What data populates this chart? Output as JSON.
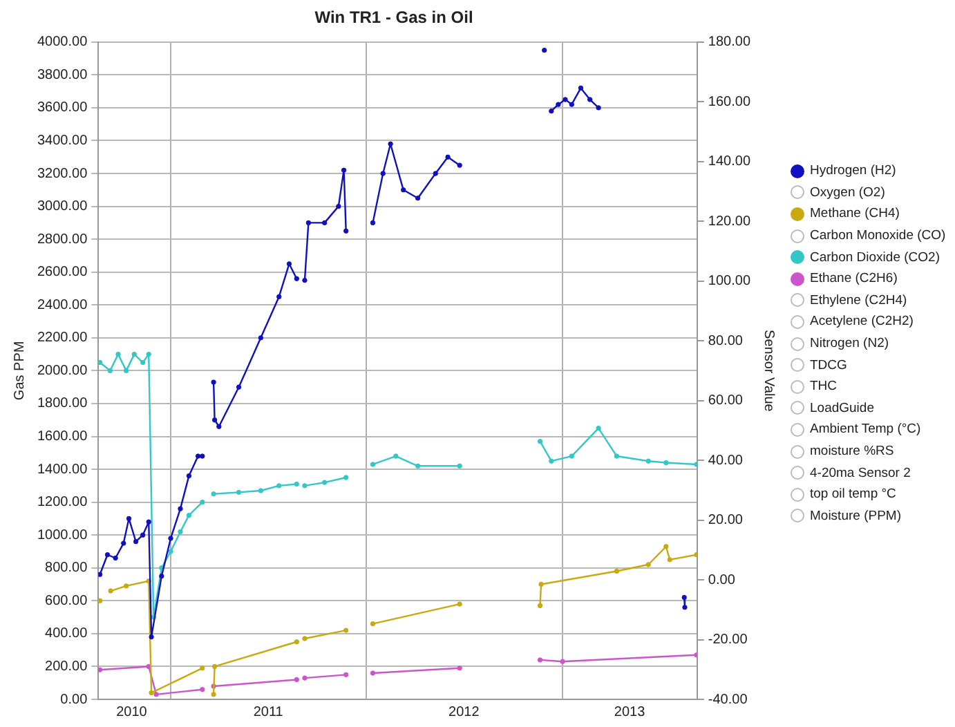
{
  "chart_data": {
    "type": "line",
    "title": "Win TR1 - Gas in Oil",
    "ylabel": "Gas PPM",
    "y2label": "Sensor Value",
    "grid": true,
    "legend": "right",
    "marker": "circle",
    "line_style": "solid",
    "xlim": [
      "2010-08-19",
      "2013-09-09"
    ],
    "xticks": [
      {
        "value": "2010-10-20",
        "label": "2010"
      },
      {
        "value": "2011-01-01",
        "label": null
      },
      {
        "value": "2011-07-02",
        "label": "2011"
      },
      {
        "value": "2012-01-01",
        "label": null
      },
      {
        "value": "2012-07-01",
        "label": "2012"
      },
      {
        "value": "2013-01-01",
        "label": null
      },
      {
        "value": "2013-05-06",
        "label": "2013"
      }
    ],
    "ylim": [
      0,
      4000
    ],
    "yticks": [
      {
        "value": 0,
        "label": "0.00"
      },
      {
        "value": 200,
        "label": "200.00"
      },
      {
        "value": 400,
        "label": "400.00"
      },
      {
        "value": 600,
        "label": "600.00"
      },
      {
        "value": 800,
        "label": "800.00"
      },
      {
        "value": 1000,
        "label": "1000.00"
      },
      {
        "value": 1200,
        "label": "1200.00"
      },
      {
        "value": 1400,
        "label": "1400.00"
      },
      {
        "value": 1600,
        "label": "1600.00"
      },
      {
        "value": 1800,
        "label": "1800.00"
      },
      {
        "value": 2000,
        "label": "2000.00"
      },
      {
        "value": 2200,
        "label": "2200.00"
      },
      {
        "value": 2400,
        "label": "2400.00"
      },
      {
        "value": 2600,
        "label": "2600.00"
      },
      {
        "value": 2800,
        "label": "2800.00"
      },
      {
        "value": 3000,
        "label": "3000.00"
      },
      {
        "value": 3200,
        "label": "3200.00"
      },
      {
        "value": 3400,
        "label": "3400.00"
      },
      {
        "value": 3600,
        "label": "3600.00"
      },
      {
        "value": 3800,
        "label": "3800.00"
      },
      {
        "value": 4000,
        "label": "4000.00"
      }
    ],
    "y2lim": [
      -40,
      180
    ],
    "y2ticks": [
      {
        "value": -40,
        "label": "-40.00"
      },
      {
        "value": -20,
        "label": "-20.00"
      },
      {
        "value": 0,
        "label": "0.00"
      },
      {
        "value": 20,
        "label": "20.00"
      },
      {
        "value": 40,
        "label": "40.00"
      },
      {
        "value": 60,
        "label": "60.00"
      },
      {
        "value": 80,
        "label": "80.00"
      },
      {
        "value": 100,
        "label": "100.00"
      },
      {
        "value": 120,
        "label": "120.00"
      },
      {
        "value": 140,
        "label": "140.00"
      },
      {
        "value": 160,
        "label": "160.00"
      },
      {
        "value": 180,
        "label": "180.00"
      }
    ],
    "series": [
      {
        "name": "Hydrogen (H2)",
        "color": "#1010c0",
        "x": [
          "2010-08-22",
          "2010-09-05",
          "2010-09-20",
          "2010-10-05",
          "2010-10-15",
          "2010-10-28",
          "2010-11-10",
          "2010-11-21",
          "2010-11-26",
          "2010-12-15",
          "2011-01-01",
          "2011-01-19",
          "2011-02-04",
          "2011-02-21",
          "2011-03-01",
          "2011-03-12",
          "2011-03-22",
          "2011-03-24",
          "2011-04-01",
          "2011-05-08",
          "2011-06-18",
          "2011-07-22",
          "2011-08-10",
          "2011-08-24",
          "2011-09-02",
          "2011-09-08",
          "2011-09-15",
          "2011-10-15",
          "2011-11-10",
          "2011-11-20",
          "2011-11-24",
          "2011-12-20",
          "2012-01-13",
          "2012-02-01",
          "2012-02-15",
          "2012-03-10",
          "2012-04-06",
          "2012-05-09",
          "2012-06-01",
          "2012-06-23",
          "2012-09-01",
          "2012-11-28",
          "2012-12-01",
          "2012-12-11",
          "2012-12-24",
          "2013-01-06",
          "2013-01-18",
          "2013-02-04",
          "2013-02-21",
          "2013-03-09",
          "2013-04-01",
          "2013-08-16",
          "2013-08-17"
        ],
        "values": [
          760,
          880,
          860,
          950,
          1100,
          960,
          1000,
          1080,
          380,
          750,
          980,
          1160,
          1360,
          1480,
          1480,
          null,
          1930,
          1700,
          1660,
          1900,
          2200,
          2450,
          2650,
          2560,
          null,
          2550,
          2900,
          2900,
          3000,
          3220,
          2850,
          null,
          2900,
          3200,
          3380,
          3100,
          3050,
          3200,
          3300,
          3250,
          null,
          3950,
          null,
          3580,
          3620,
          3650,
          3620,
          3720,
          3650,
          3600,
          null,
          620,
          560
        ]
      },
      {
        "name": "Oxygen (O2)"
      },
      {
        "name": "Methane (CH4)",
        "color": "#c8aa10",
        "x": [
          "2010-08-22",
          "2010-09-01",
          "2010-09-11",
          "2010-10-10",
          "2010-11-21",
          "2010-11-26",
          "2011-03-01",
          "2011-03-12",
          "2011-03-22",
          "2011-03-24",
          "2011-08-24",
          "2011-09-02",
          "2011-09-08",
          "2011-11-24",
          "2011-12-20",
          "2012-01-13",
          "2012-06-23",
          "2012-09-01",
          "2012-11-20",
          "2012-11-22",
          "2013-04-12",
          "2013-06-10",
          "2013-07-13",
          "2013-07-20",
          "2013-09-08"
        ],
        "values": [
          600,
          null,
          660,
          690,
          720,
          40,
          190,
          null,
          30,
          200,
          350,
          null,
          370,
          420,
          null,
          460,
          580,
          null,
          570,
          700,
          780,
          820,
          930,
          850,
          880
        ]
      },
      {
        "name": "Carbon Monoxide (CO)"
      },
      {
        "name": "Carbon Dioxide (CO2)",
        "color": "#33c8c8",
        "x": [
          "2010-08-22",
          "2010-09-10",
          "2010-09-25",
          "2010-10-10",
          "2010-10-25",
          "2010-11-10",
          "2010-11-21",
          "2010-11-30",
          "2010-12-15",
          "2011-01-01",
          "2011-01-19",
          "2011-02-04",
          "2011-03-01",
          "2011-03-12",
          "2011-03-22",
          "2011-05-08",
          "2011-06-18",
          "2011-07-22",
          "2011-08-24",
          "2011-09-02",
          "2011-09-08",
          "2011-10-15",
          "2011-11-24",
          "2011-12-20",
          "2012-01-13",
          "2012-02-25",
          "2012-04-06",
          "2012-06-23",
          "2012-09-01",
          "2012-11-20",
          "2012-12-11",
          "2013-01-18",
          "2013-03-09",
          "2013-04-12",
          "2013-06-10",
          "2013-07-13",
          "2013-09-08"
        ],
        "values": [
          2050,
          2000,
          2100,
          2000,
          2100,
          2050,
          2100,
          500,
          800,
          900,
          1020,
          1120,
          1200,
          null,
          1250,
          1260,
          1270,
          1300,
          1310,
          null,
          1300,
          1320,
          1350,
          null,
          1430,
          1480,
          1420,
          1420,
          null,
          1570,
          1450,
          1480,
          1650,
          1480,
          1450,
          1440,
          1430
        ]
      },
      {
        "name": "Ethane (C2H6)",
        "color": "#cc55cc",
        "x": [
          "2010-08-22",
          "2010-11-21",
          "2010-12-05",
          "2011-03-01",
          "2011-03-12",
          "2011-03-22",
          "2011-08-24",
          "2011-09-02",
          "2011-09-08",
          "2011-11-24",
          "2011-12-20",
          "2012-01-13",
          "2012-06-23",
          "2012-09-01",
          "2012-11-20",
          "2013-01-01",
          "2013-09-08"
        ],
        "values": [
          180,
          200,
          30,
          60,
          null,
          80,
          120,
          null,
          130,
          150,
          null,
          160,
          190,
          null,
          240,
          230,
          270
        ]
      },
      {
        "name": "Ethylene (C2H4)"
      },
      {
        "name": "Acetylene (C2H2)"
      },
      {
        "name": "Nitrogen (N2)"
      },
      {
        "name": "TDCG"
      },
      {
        "name": "THC"
      },
      {
        "name": "LoadGuide"
      },
      {
        "name": "Ambient Temp (°C)"
      },
      {
        "name": "moisture %RS"
      },
      {
        "name": "4-20ma Sensor 2"
      },
      {
        "name": "top oil temp °C"
      },
      {
        "name": "Moisture (PPM)"
      }
    ]
  }
}
